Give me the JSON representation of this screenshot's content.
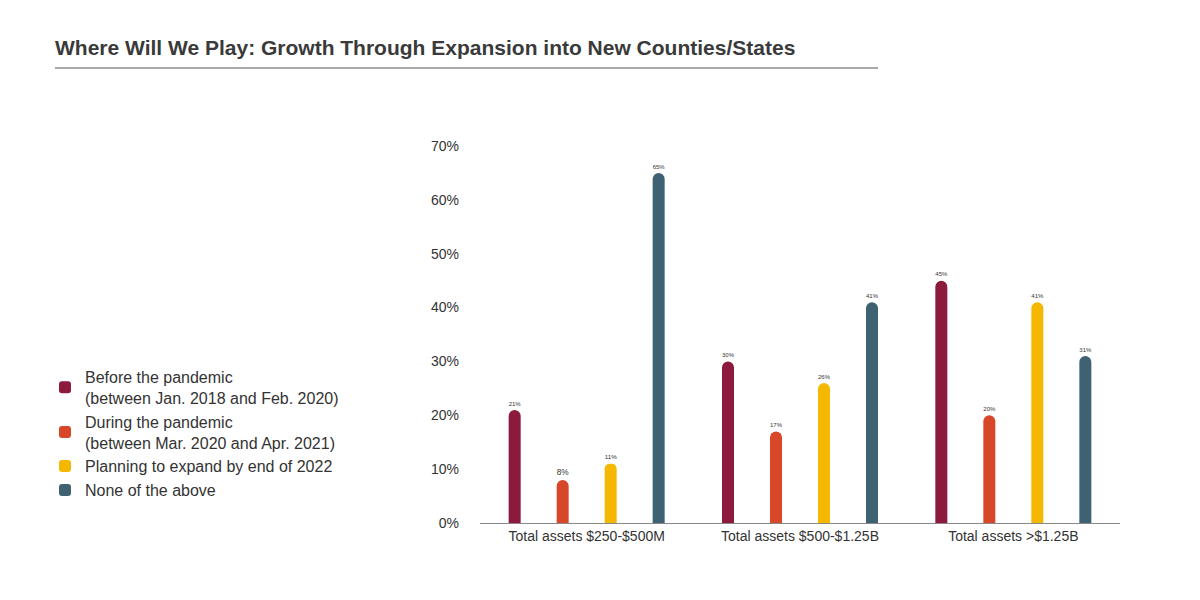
{
  "chart_data": {
    "type": "bar",
    "title": "Where Will We Play: Growth Through Expansion into New Counties/States",
    "categories": [
      "Total assets $250-$500M",
      "Total assets $500-$1.25B",
      "Total assets >$1.25B"
    ],
    "series": [
      {
        "name": "Before the pandemic\n(between Jan. 2018 and Feb. 2020)",
        "color": "#8b1a3c",
        "values": [
          21,
          30,
          45
        ],
        "value_labels": [
          "21%",
          "30%",
          "45%"
        ]
      },
      {
        "name": "During the pandemic\n(between Mar. 2020 and Apr. 2021)",
        "color": "#d9472b",
        "values": [
          8,
          17,
          20
        ],
        "value_labels": [
          "8%",
          "17%",
          "20%"
        ]
      },
      {
        "name": "Planning to expand by end of 2022",
        "color": "#f5b800",
        "values": [
          11,
          26,
          41
        ],
        "value_labels": [
          "11%",
          "26%",
          "41%"
        ]
      },
      {
        "name": "None of the above",
        "color": "#3e6272",
        "values": [
          65,
          41,
          31
        ],
        "value_labels": [
          "65%",
          "41%",
          "31%"
        ]
      }
    ],
    "ylim": [
      0,
      70
    ],
    "yticks": [
      {
        "value": 0,
        "label": "0%"
      },
      {
        "value": 10,
        "label": "10%"
      },
      {
        "value": 20,
        "label": "20%"
      },
      {
        "value": 30,
        "label": "30%"
      },
      {
        "value": 40,
        "label": "40%"
      },
      {
        "value": 50,
        "label": "50%"
      },
      {
        "value": 60,
        "label": "60%"
      },
      {
        "value": 70,
        "label": "70%"
      }
    ],
    "grid": false,
    "legend": "left",
    "data_labels": true
  }
}
